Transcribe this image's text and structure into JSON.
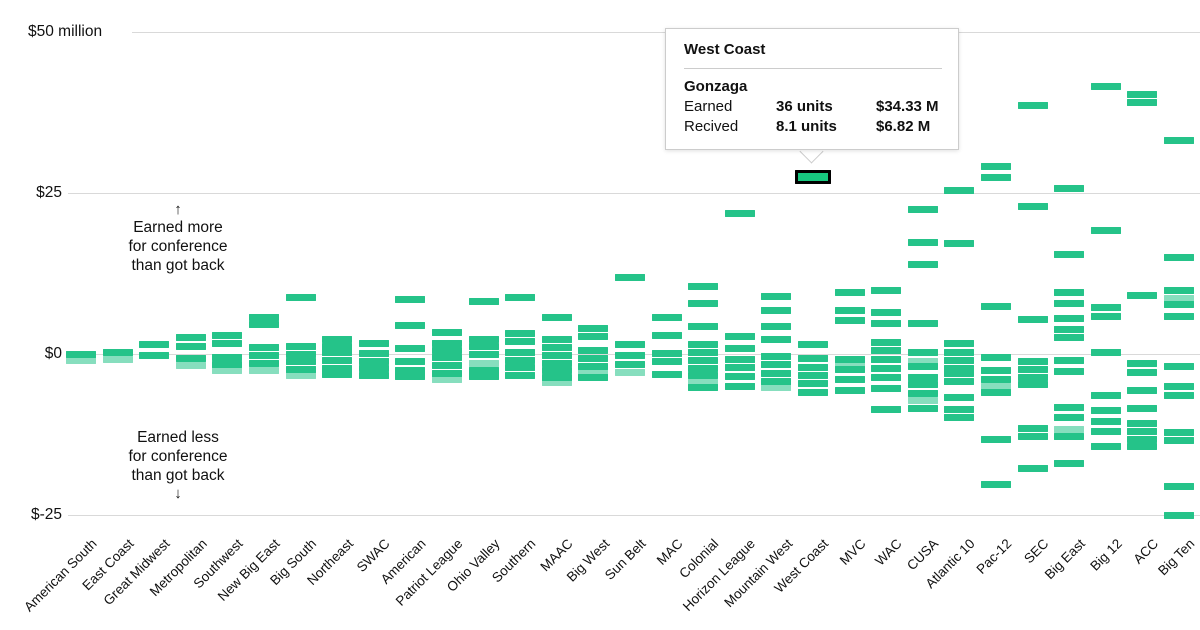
{
  "colors": {
    "dash": "#25C389",
    "dash_light": "#8FE0C1",
    "highlight_fill": "#17C77F",
    "highlight_border": "#000000",
    "gridline": "#D9D9D9",
    "text": "#111111",
    "tooltip_border": "#CCCCCC",
    "background": "#FFFFFF"
  },
  "tooltip": {
    "title": "West Coast",
    "team": "Gonzaga",
    "rows": [
      {
        "label": "Earned",
        "units": "36 units",
        "amount": "$34.33 M"
      },
      {
        "label": "Recived",
        "units": "8.1 units",
        "amount": "$6.82 M"
      }
    ]
  },
  "annotations": {
    "above": {
      "arrow": "↑",
      "lines": [
        "Earned more",
        "for conference",
        "than got back"
      ]
    },
    "below": {
      "arrow": "↓",
      "lines": [
        "Earned less",
        "for conference",
        "than got back"
      ]
    }
  },
  "chart_data": {
    "type": "scatter",
    "subtype": "strip-plot of horizontal dashes, one per team, grouped by conference column",
    "title": "",
    "xlabel": "conference",
    "ylabel": "net money earned for conference ($ million)",
    "ylim": [
      -27,
      52
    ],
    "grid": "horizontal gridlines at -25, 0, 25, 50",
    "y_axis": {
      "ticks": [
        {
          "value": 50,
          "label": "$50 million"
        },
        {
          "value": 25,
          "label": "$25"
        },
        {
          "value": 0,
          "label": "$0"
        },
        {
          "value": -25,
          "label": "$-25"
        }
      ]
    },
    "highlight": {
      "conference": "West Coast",
      "team": "Gonzaga",
      "value": 27.51
    },
    "conferences": [
      {
        "name": "American South",
        "values": [
          -0.1
        ],
        "light": [
          -1.0
        ]
      },
      {
        "name": "East Coast",
        "values": [
          0.2
        ],
        "light": [
          -0.8
        ]
      },
      {
        "name": "Great Midwest",
        "values": [
          1.5,
          -0.3
        ],
        "light": []
      },
      {
        "name": "Metropolitan",
        "values": [
          2.6,
          1.2,
          -0.7
        ],
        "light": [
          -1.8
        ]
      },
      {
        "name": "Southwest",
        "values": [
          2.9,
          1.6,
          -0.5,
          -1.6
        ],
        "light": [
          -2.5
        ]
      },
      {
        "name": "New Big East",
        "values": [
          5.7,
          4.5,
          1.0,
          -0.3,
          -1.5
        ],
        "light": [
          -2.6
        ]
      },
      {
        "name": "Big South",
        "values": [
          8.7,
          1.2,
          0.0,
          -1.2,
          -2.4
        ],
        "light": [
          -3.4
        ]
      },
      {
        "name": "Northeast",
        "values": [
          2.3,
          1.2,
          0.2,
          -1.0,
          -2.2,
          -3.2
        ],
        "light": []
      },
      {
        "name": "SWAC",
        "values": [
          1.6,
          0.1,
          -1.1,
          -2.2,
          -3.3
        ],
        "light": []
      },
      {
        "name": "American",
        "values": [
          8.4,
          4.4,
          0.9,
          -1.2,
          -2.5,
          -3.5
        ],
        "light": []
      },
      {
        "name": "Patriot League",
        "values": [
          3.3,
          1.7,
          0.5,
          -0.6,
          -1.8,
          -3.0
        ],
        "light": [
          -3.9
        ]
      },
      {
        "name": "Ohio Valley",
        "values": [
          8.1,
          2.3,
          1.1,
          -0.1,
          -2.5,
          -3.5
        ],
        "light": [
          -1.4
        ]
      },
      {
        "name": "Southern",
        "values": [
          8.8,
          3.2,
          2.0,
          0.3,
          -1.0,
          -2.1,
          -3.3
        ],
        "light": []
      },
      {
        "name": "MAAC",
        "values": [
          5.7,
          2.2,
          1.0,
          -0.2,
          -1.4,
          -2.5,
          -3.7
        ],
        "light": [
          -4.4
        ]
      },
      {
        "name": "Big West",
        "values": [
          3.9,
          2.7,
          0.5,
          -0.7,
          -1.9,
          -3.7
        ],
        "light": [
          -2.9
        ]
      },
      {
        "name": "Sun Belt",
        "values": [
          11.9,
          1.5,
          -0.2,
          -1.6
        ],
        "light": [
          -2.8
        ]
      },
      {
        "name": "MAC",
        "values": [
          5.6,
          2.9,
          0.1,
          -1.2,
          -3.2
        ],
        "light": []
      },
      {
        "name": "Colonial",
        "values": [
          10.4,
          7.9,
          4.2,
          1.5,
          0.2,
          -1.0,
          -2.2,
          -3.4,
          -5.2
        ],
        "light": [
          -4.4
        ]
      },
      {
        "name": "Horizon League",
        "values": [
          21.8,
          2.7,
          0.9,
          -0.8,
          -2.1,
          -3.5,
          -5.0
        ],
        "light": []
      },
      {
        "name": "Mountain West",
        "values": [
          8.9,
          6.8,
          4.2,
          2.3,
          -0.4,
          -1.7,
          -3.0,
          -4.2
        ],
        "light": [
          -5.2
        ]
      },
      {
        "name": "West Coast",
        "values": [
          1.4,
          -0.7,
          -2.1,
          -3.3,
          -4.6,
          -5.9
        ],
        "light": []
      },
      {
        "name": "MVC",
        "values": [
          9.6,
          6.7,
          5.2,
          -0.8,
          -2.4,
          -4.0,
          -5.7
        ],
        "light": [
          -1.7
        ]
      },
      {
        "name": "WAC",
        "values": [
          9.8,
          6.5,
          4.7,
          1.8,
          0.5,
          -0.8,
          -2.3,
          -3.7,
          -5.3,
          -8.6
        ],
        "light": []
      },
      {
        "name": "CUSA",
        "values": [
          22.4,
          17.3,
          13.8,
          4.8,
          0.3,
          -2.0,
          -3.6,
          -4.8,
          -6.2,
          -8.4
        ],
        "light": [
          -1.1,
          -7.2
        ]
      },
      {
        "name": "Atlantic 10",
        "values": [
          25.4,
          17.2,
          1.6,
          0.3,
          -1.0,
          -2.2,
          -3.1,
          -4.2,
          -6.7,
          -8.6,
          -9.9
        ],
        "light": []
      },
      {
        "name": "Pac-12",
        "values": [
          29.0,
          27.4,
          7.4,
          -0.6,
          -2.6,
          -3.9,
          -5.9,
          -13.3,
          -20.3
        ],
        "light": [
          -5.0
        ]
      },
      {
        "name": "SEC",
        "values": [
          38.6,
          22.8,
          5.4,
          -1.2,
          -2.4,
          -3.7,
          -4.8,
          -11.6,
          -12.8,
          -17.8
        ],
        "light": []
      },
      {
        "name": "Big East",
        "values": [
          25.7,
          15.4,
          9.6,
          7.8,
          5.5,
          3.8,
          2.6,
          -1.0,
          -2.7,
          -8.3,
          -9.9,
          -12.8,
          -16.9
        ],
        "light": [
          -11.7
        ]
      },
      {
        "name": "Big 12",
        "values": [
          41.5,
          19.2,
          7.2,
          5.8,
          0.2,
          -6.5,
          -8.8,
          -10.4,
          -12.0,
          -14.3
        ],
        "light": []
      },
      {
        "name": "ACC",
        "values": [
          40.3,
          39.0,
          9.0,
          -1.5,
          -2.9,
          -5.6,
          -8.5,
          -10.8,
          -12.0,
          -13.2,
          -14.3
        ],
        "light": []
      },
      {
        "name": "Big Ten",
        "values": [
          33.1,
          14.9,
          9.8,
          7.7,
          5.8,
          -2.0,
          -5.0,
          -6.5,
          -12.2,
          -13.4,
          -20.6,
          -25.1
        ],
        "light": [
          8.6
        ]
      }
    ]
  }
}
